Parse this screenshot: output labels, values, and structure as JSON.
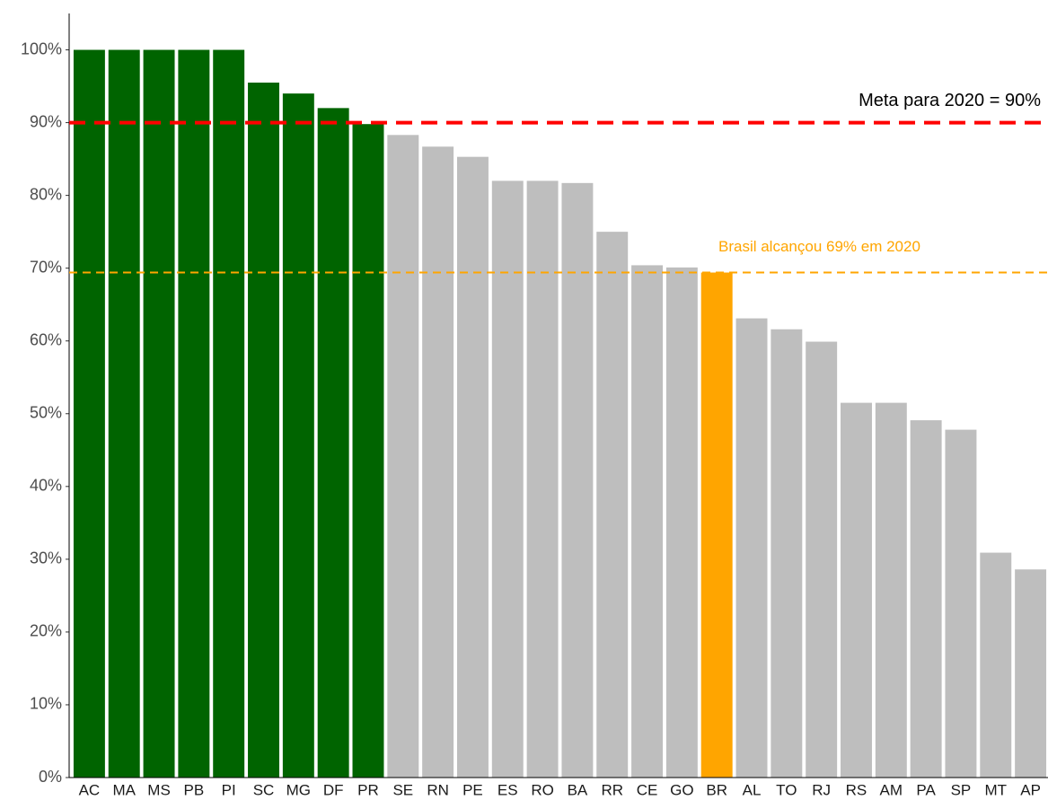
{
  "chart_data": {
    "type": "bar",
    "categories": [
      "AC",
      "MA",
      "MS",
      "PB",
      "PI",
      "SC",
      "MG",
      "DF",
      "PR",
      "SE",
      "RN",
      "PE",
      "ES",
      "RO",
      "BA",
      "RR",
      "CE",
      "GO",
      "BR",
      "AL",
      "TO",
      "RJ",
      "RS",
      "AM",
      "PA",
      "SP",
      "MT",
      "AP"
    ],
    "values": [
      100,
      100,
      100,
      100,
      100,
      95.5,
      94,
      92,
      89.8,
      88.3,
      86.7,
      85.3,
      82,
      82,
      81.7,
      75,
      70.4,
      70.1,
      69.4,
      63.1,
      61.6,
      59.9,
      51.5,
      51.5,
      49.1,
      47.8,
      30.9,
      28.6
    ],
    "colors": [
      "#006400",
      "#006400",
      "#006400",
      "#006400",
      "#006400",
      "#006400",
      "#006400",
      "#006400",
      "#006400",
      "#bebebe",
      "#bebebe",
      "#bebebe",
      "#bebebe",
      "#bebebe",
      "#bebebe",
      "#bebebe",
      "#bebebe",
      "#bebebe",
      "#ffa500",
      "#bebebe",
      "#bebebe",
      "#bebebe",
      "#bebebe",
      "#bebebe",
      "#bebebe",
      "#bebebe",
      "#bebebe",
      "#bebebe"
    ],
    "ylim": [
      0,
      105
    ],
    "yticks": [
      {
        "value": 0,
        "label": "0%"
      },
      {
        "value": 10,
        "label": "10%"
      },
      {
        "value": 20,
        "label": "20%"
      },
      {
        "value": 30,
        "label": "30%"
      },
      {
        "value": 40,
        "label": "40%"
      },
      {
        "value": 50,
        "label": "50%"
      },
      {
        "value": 60,
        "label": "60%"
      },
      {
        "value": 70,
        "label": "70%"
      },
      {
        "value": 80,
        "label": "80%"
      },
      {
        "value": 90,
        "label": "90%"
      },
      {
        "value": 100,
        "label": "100%"
      }
    ],
    "reference_lines": [
      {
        "value": 90,
        "color": "#ff0000",
        "label": "Meta para 2020 = 90%"
      },
      {
        "value": 69.4,
        "color": "#ffa500",
        "label": "Brasil alcançou 69% em 2020"
      }
    ]
  }
}
